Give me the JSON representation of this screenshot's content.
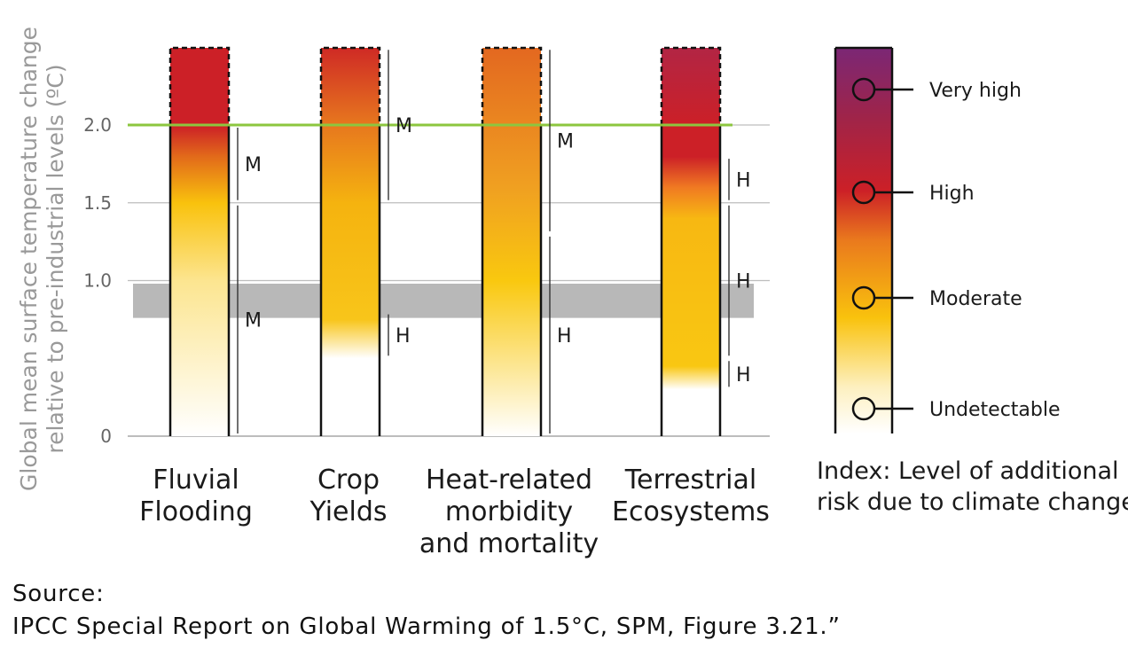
{
  "chart_data": {
    "type": "bar",
    "ylabel": [
      "Global mean surface temperature change",
      "relative to pre-industrial levels (ºC)"
    ],
    "y_ticks": [
      "0",
      "1.0",
      "1.5",
      "2.0"
    ],
    "y_tick_values": [
      0,
      1.0,
      1.5,
      2.0
    ],
    "ylim": [
      0,
      2.5
    ],
    "reference_line": {
      "value": 2.0,
      "color": "#8cc63f"
    },
    "shaded_band": {
      "from": 0.76,
      "to": 0.98,
      "color": "#b8b8b8"
    },
    "categories": [
      {
        "label": [
          "Fluvial",
          "Flooding"
        ],
        "stops": [
          [
            0,
            "#ffffff"
          ],
          [
            1.0,
            "#fce590"
          ],
          [
            1.5,
            "#f9c20d"
          ],
          [
            1.8,
            "#e26a1a"
          ],
          [
            2.0,
            "#cc2027"
          ],
          [
            2.5,
            "#cc2027"
          ]
        ],
        "confidence": [
          {
            "from": 0,
            "to": 1.5,
            "label": "M"
          },
          {
            "from": 1.5,
            "to": 2.0,
            "label": "M"
          }
        ]
      },
      {
        "label": [
          "Crop",
          "Yields"
        ],
        "stops": [
          [
            0.5,
            "#ffffff"
          ],
          [
            0.75,
            "#f8c51a"
          ],
          [
            1.5,
            "#f5b30f"
          ],
          [
            2.0,
            "#e7781e"
          ],
          [
            2.5,
            "#cf2a25"
          ]
        ],
        "confidence": [
          {
            "from": 0.5,
            "to": 0.8,
            "label": "H"
          },
          {
            "from": 1.5,
            "to": 2.5,
            "label": "M"
          }
        ]
      },
      {
        "label": [
          "Heat-related",
          "morbidity",
          "and mortality"
        ],
        "stops": [
          [
            0,
            "#ffffff"
          ],
          [
            1.0,
            "#f9c80f"
          ],
          [
            1.6,
            "#f0a021"
          ],
          [
            2.5,
            "#e36820"
          ]
        ],
        "confidence": [
          {
            "from": 0,
            "to": 1.3,
            "label": "H"
          },
          {
            "from": 1.3,
            "to": 2.5,
            "label": "M"
          }
        ]
      },
      {
        "label": [
          "Terrestrial",
          "Ecosystems"
        ],
        "stops": [
          [
            0.3,
            "#ffffff"
          ],
          [
            0.45,
            "#f9c712"
          ],
          [
            1.4,
            "#f7b812"
          ],
          [
            1.6,
            "#f07a22"
          ],
          [
            1.8,
            "#cc2027"
          ],
          [
            2.0,
            "#cc2027"
          ],
          [
            2.5,
            "#b22544"
          ]
        ],
        "confidence": [
          {
            "from": 0.3,
            "to": 0.5,
            "label": "H"
          },
          {
            "from": 0.5,
            "to": 1.5,
            "label": "H"
          },
          {
            "from": 1.5,
            "to": 1.8,
            "label": "H"
          }
        ]
      }
    ]
  },
  "legend": {
    "title": [
      "Index: Level of additional",
      "risk due to climate change"
    ],
    "levels": [
      {
        "label": "Undetectable",
        "color": "#ffffff"
      },
      {
        "label": "Moderate",
        "color": "#f9c20d"
      },
      {
        "label": "High",
        "color": "#cc2027"
      },
      {
        "label": "Very high",
        "color": "#7b2775"
      }
    ]
  },
  "source": {
    "line1": "Source:",
    "line2": "IPCC Special Report on Global Warming of 1.5°C, SPM, Figure 3.21.”"
  }
}
